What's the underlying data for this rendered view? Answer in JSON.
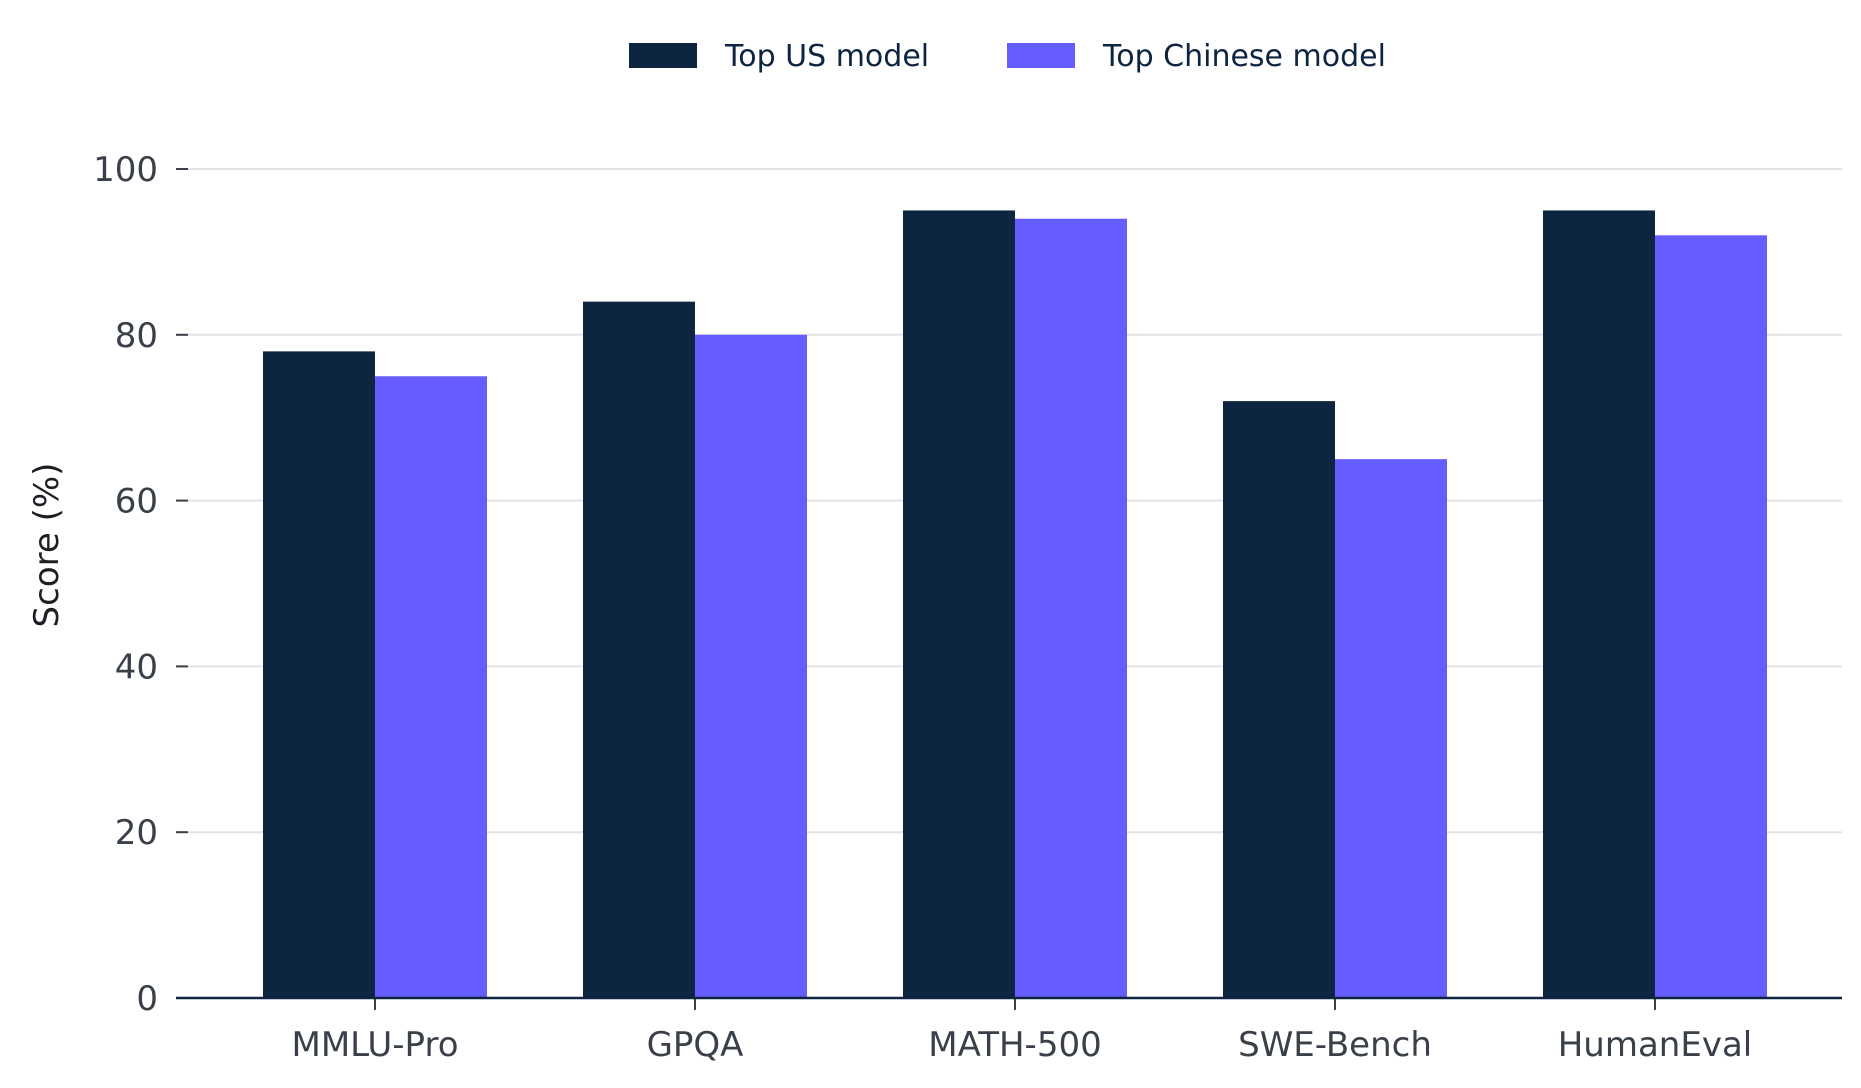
{
  "chart_data": {
    "type": "bar",
    "categories": [
      "MMLU-Pro",
      "GPQA",
      "MATH-500",
      "SWE-Bench",
      "HumanEval"
    ],
    "series": [
      {
        "name": "Top US model",
        "values": [
          78,
          84,
          95,
          72,
          95
        ],
        "color": "#0d2540"
      },
      {
        "name": "Top Chinese model",
        "values": [
          75,
          80,
          94,
          65,
          92
        ],
        "color": "#655dff"
      }
    ],
    "ylabel": "Score (%)",
    "xlabel": "",
    "ylim": [
      0,
      100
    ],
    "yticks": [
      "0",
      "20",
      "40",
      "60",
      "80",
      "100"
    ],
    "grid": true,
    "legend_position": "top-center",
    "colors": {
      "grid": "#e3e3e3",
      "axis": "#0d2540",
      "tick": "#3a4049"
    }
  }
}
